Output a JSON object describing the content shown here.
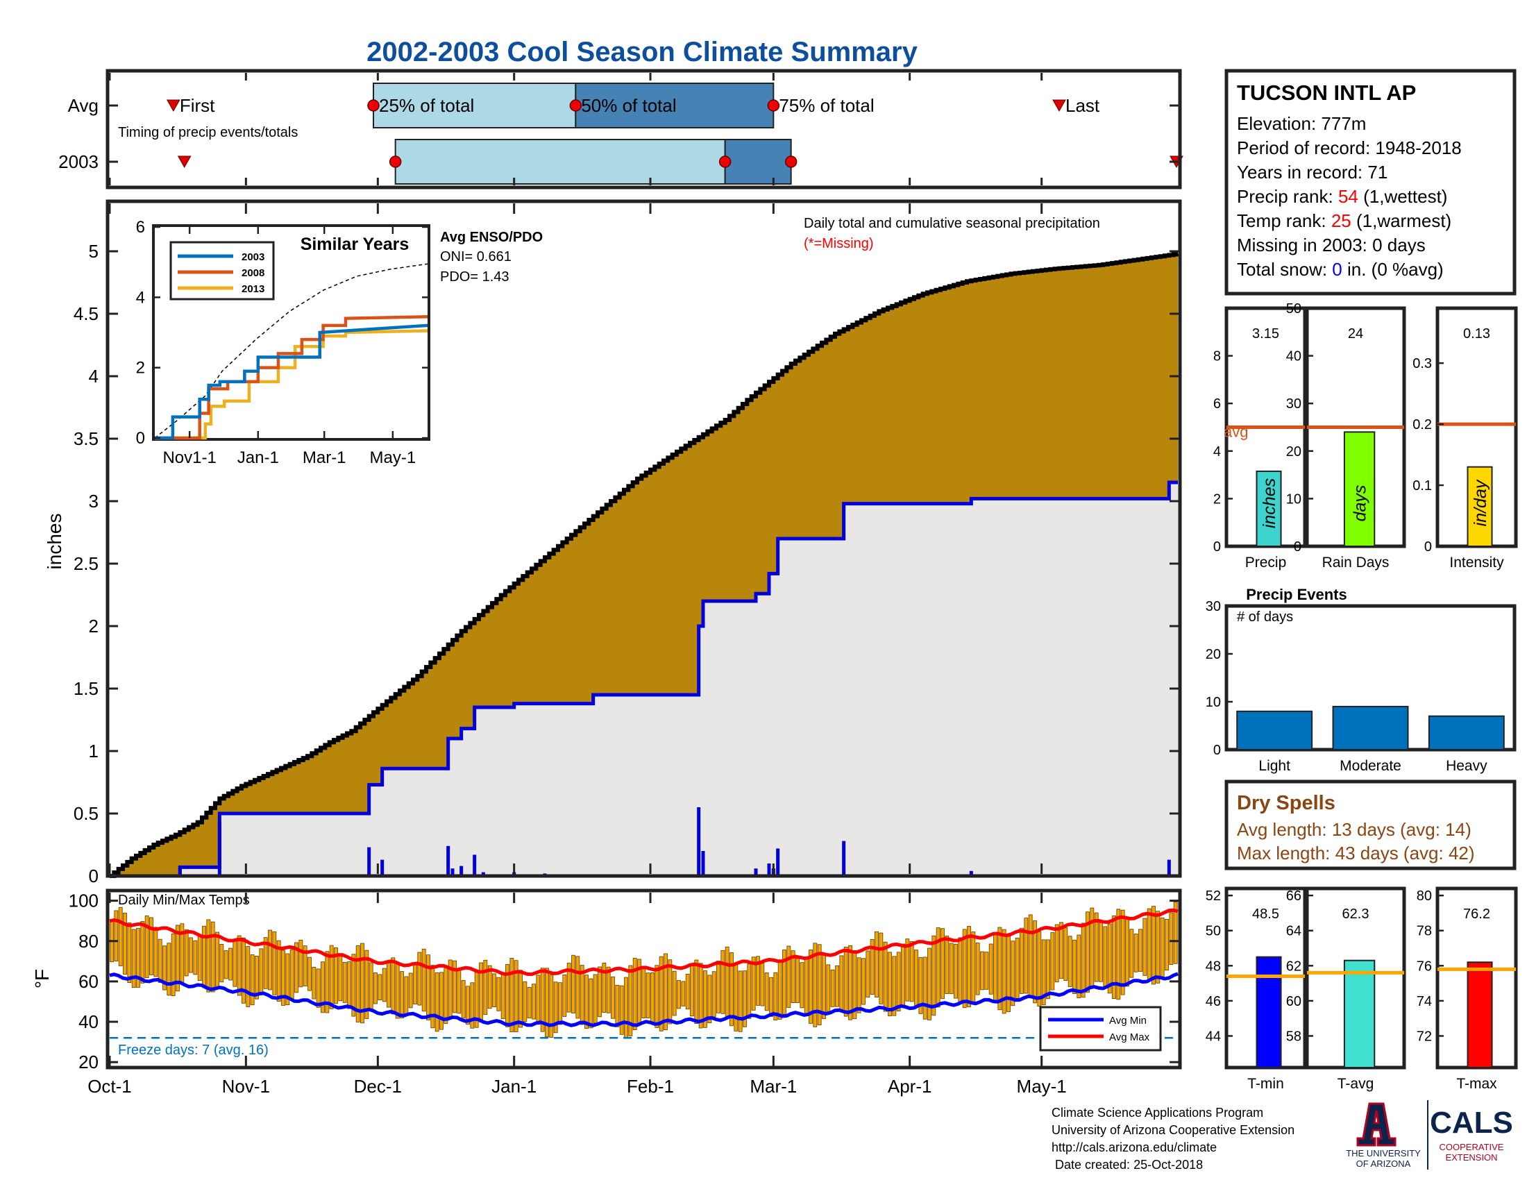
{
  "page": {
    "title": "2002-2003 Cool Season Climate Summary",
    "footer_lines": [
      "Climate Science Applications Program",
      "University of Arizona Cooperative Extension",
      "http://cals.arizona.edu/climate",
      " Date created: 25-Oct-2018"
    ],
    "logo_ua": {
      "line1": "THE UNIVERSITY",
      "line2": "OF ARIZONA"
    },
    "logo_cals": {
      "text": "CALS",
      "line1": "COOPERATIVE",
      "line2": "EXTENSION"
    }
  },
  "colors": {
    "title": "#0d4f9c",
    "cum_fill": "#b8860b",
    "cum_line": "#000000",
    "gray_fill": "#e8e7e6",
    "year_line": "#0000dd",
    "avg_bar_light": "#add8e6",
    "avg_bar_dark": "#4682b4",
    "s2003": "#0072bd",
    "s2008": "#d95319",
    "s2013": "#edb120",
    "temp_bar": "#f5a300",
    "avg_min": "#0000ff",
    "avg_max": "#ff0000",
    "freeze": "#0072bd",
    "rank": "#ff0000",
    "snow": "#0000ff",
    "dry": "#8b4513",
    "precip_bar": "#3cd4cc",
    "rain_bar": "#80ff00",
    "intensity_bar": "#ffd700",
    "events_bar": "#0072bd",
    "tmin_bar": "#0000ff",
    "tavg_bar": "#40e0d0",
    "tmax_bar": "#ff0000",
    "avg_line_bars": "#d95319",
    "avg_line_temps": "#ffa500"
  },
  "station": {
    "name": "TUCSON INTL AP",
    "elevation": "Elevation: 777m",
    "period": "Period of record: 1948-2018",
    "years": "Years in record: 71",
    "precip_rank_label": "Precip rank: ",
    "precip_rank_value": "54",
    "precip_rank_note": " (1,wettest)",
    "temp_rank_label": "Temp rank: ",
    "temp_rank_value": "25",
    "temp_rank_note": " (1,warmest)",
    "missing": "Missing in 2003: 0 days",
    "snow_label": "Total snow: ",
    "snow_value": "0",
    "snow_note": " in. (0 %avg)"
  },
  "timing": {
    "rows": [
      "Avg",
      "2003"
    ],
    "caption": "Timing of precip events/totals",
    "labels": {
      "first": "First",
      "p25": "25% of total",
      "p50": "50% of total",
      "p75": "75% of total",
      "last": "Last"
    },
    "avg_days": {
      "first": 14.5,
      "p25": 60,
      "p50": 106,
      "p75": 151,
      "last": 216
    },
    "y2003_days": {
      "first": 17,
      "p25": 65,
      "p50": 140,
      "p75": 155,
      "last": 243
    }
  },
  "dry_spells": {
    "title": "Dry Spells",
    "avg_length": "Avg length: 13 days (avg: 14)",
    "max_length": "Max length: 43 days (avg: 42)"
  },
  "chart_data": [
    {
      "id": "cumulative-precip",
      "type": "area",
      "annotation": "Daily total and cumulative seasonal precipitation",
      "missing_note": "(*=Missing)",
      "ylabel": "inches",
      "ylim": [
        0,
        5.4
      ],
      "yticks": [
        "0",
        "0.5",
        "1",
        "1.5",
        "2",
        "2.5",
        "3",
        "3.5",
        "4",
        "4.5",
        "5"
      ],
      "xlim": [
        0,
        243
      ],
      "xticks": [
        {
          "day": 0,
          "label": "Oct-1"
        },
        {
          "day": 31,
          "label": "Nov-1"
        },
        {
          "day": 61,
          "label": "Dec-1"
        },
        {
          "day": 92,
          "label": "Jan-1"
        },
        {
          "day": 123,
          "label": "Feb-1"
        },
        {
          "day": 151,
          "label": "Mar-1"
        },
        {
          "day": 182,
          "label": "Apr-1"
        },
        {
          "day": 212,
          "label": "May-1"
        }
      ],
      "avg_cumulative": {
        "days": [
          0,
          5,
          10,
          15,
          20,
          25,
          30,
          35,
          40,
          45,
          50,
          55,
          60,
          70,
          80,
          90,
          100,
          110,
          120,
          130,
          140,
          145,
          155,
          165,
          175,
          185,
          195,
          205,
          215,
          225,
          235,
          243
        ],
        "inches": [
          0,
          0.14,
          0.25,
          0.33,
          0.43,
          0.62,
          0.72,
          0.8,
          0.88,
          0.96,
          1.07,
          1.16,
          1.31,
          1.6,
          1.96,
          2.28,
          2.58,
          2.88,
          3.18,
          3.42,
          3.65,
          3.81,
          4.1,
          4.34,
          4.52,
          4.66,
          4.76,
          4.82,
          4.86,
          4.89,
          4.94,
          4.98
        ]
      },
      "cumulative_2003": {
        "days": [
          0,
          16,
          16,
          25,
          25,
          59,
          59,
          62,
          62,
          77,
          77,
          80,
          80,
          83,
          83,
          92,
          92,
          110,
          110,
          134,
          134,
          135,
          135,
          147,
          147,
          150,
          150,
          152,
          152,
          167,
          167,
          196,
          196,
          241,
          241,
          243
        ],
        "inches": [
          0,
          0,
          0.07,
          0.07,
          0.5,
          0.5,
          0.73,
          0.73,
          0.86,
          0.86,
          1.1,
          1.1,
          1.18,
          1.18,
          1.35,
          1.35,
          1.38,
          1.38,
          1.45,
          1.45,
          2.0,
          2.0,
          2.2,
          2.2,
          2.26,
          2.26,
          2.42,
          2.42,
          2.7,
          2.7,
          2.98,
          2.98,
          3.02,
          3.02,
          3.15,
          3.15
        ]
      },
      "daily_2003": {
        "days": [
          16,
          25,
          59,
          62,
          77,
          78,
          80,
          83,
          85,
          92,
          99,
          134,
          135,
          147,
          150,
          151,
          152,
          167,
          196,
          241
        ],
        "inches": [
          0.07,
          0.43,
          0.23,
          0.13,
          0.24,
          0.06,
          0.08,
          0.17,
          0.03,
          0.03,
          0.02,
          0.55,
          0.2,
          0.06,
          0.1,
          0.06,
          0.22,
          0.28,
          0.04,
          0.13
        ]
      }
    },
    {
      "id": "similar-years",
      "type": "line",
      "title": "Similar Years",
      "ylim": [
        0,
        6
      ],
      "yticks": [
        "0",
        "2",
        "4",
        "6"
      ],
      "xlim": [
        0,
        243
      ],
      "xticks": [
        {
          "day": 31,
          "label": "Nov1-1"
        },
        {
          "day": 92,
          "label": "Jan-1"
        },
        {
          "day": 151,
          "label": "Mar-1"
        },
        {
          "day": 212,
          "label": "May-1"
        }
      ],
      "enso": {
        "title": "Avg ENSO/PDO",
        "oni": "ONI= 0.661",
        "pdo": "PDO= 1.43"
      },
      "avg_line": {
        "days": [
          0,
          20,
          45,
          60,
          90,
          120,
          150,
          180,
          210,
          243
        ],
        "inches": [
          0,
          0.5,
          1.2,
          1.9,
          2.8,
          3.6,
          4.2,
          4.6,
          4.8,
          4.95
        ]
      },
      "series": [
        {
          "name": "2003",
          "days": [
            0,
            16,
            16,
            40,
            40,
            48,
            48,
            58,
            58,
            80,
            80,
            92,
            92,
            147,
            147,
            243
          ],
          "inches": [
            0,
            0,
            0.6,
            0.6,
            1.1,
            1.1,
            1.5,
            1.5,
            1.6,
            1.6,
            1.9,
            1.9,
            2.3,
            2.3,
            3.0,
            3.2
          ]
        },
        {
          "name": "2008",
          "days": [
            0,
            40,
            40,
            48,
            48,
            65,
            65,
            92,
            92,
            110,
            110,
            131,
            131,
            150,
            150,
            170,
            170,
            243
          ],
          "inches": [
            0,
            0,
            0.7,
            0.7,
            1.4,
            1.4,
            1.6,
            1.6,
            2.0,
            2.0,
            2.4,
            2.4,
            2.8,
            2.8,
            3.2,
            3.2,
            3.4,
            3.45
          ]
        },
        {
          "name": "2013",
          "days": [
            0,
            45,
            45,
            50,
            50,
            62,
            62,
            84,
            84,
            110,
            110,
            125,
            125,
            150,
            150,
            170,
            170,
            243
          ],
          "inches": [
            0,
            0,
            0.4,
            0.4,
            0.9,
            0.9,
            1.05,
            1.05,
            1.6,
            1.6,
            2.0,
            2.0,
            2.6,
            2.6,
            2.9,
            2.9,
            3.0,
            3.05
          ]
        }
      ]
    },
    {
      "id": "daily-temps",
      "type": "bar",
      "title": "Daily Min/Max Temps",
      "ylabel": "°F",
      "ylim": [
        18,
        104
      ],
      "yticks": [
        "20",
        "40",
        "60",
        "80",
        "100"
      ],
      "xlim": [
        0,
        243
      ],
      "freeze_line": 32,
      "freeze_text": "Freeze days: 7 (avg. 16)",
      "legend": [
        "Avg Min",
        "Avg Max"
      ],
      "avg_min": {
        "days": [
          0,
          30,
          60,
          92,
          120,
          150,
          180,
          210,
          243
        ],
        "temps": [
          63,
          55,
          45,
          39,
          39,
          43,
          47,
          52,
          63
        ]
      },
      "avg_max": {
        "days": [
          0,
          30,
          60,
          92,
          120,
          150,
          180,
          210,
          243
        ],
        "temps": [
          90,
          80,
          70,
          64,
          66,
          70,
          78,
          85,
          95
        ]
      }
    },
    {
      "id": "precip-total",
      "type": "bar",
      "categories": [
        "Precip"
      ],
      "values": [
        3.15
      ],
      "value_label": "3.15",
      "bar_label": "inches",
      "avg": 5.0,
      "avg_label": "avg",
      "ylim": [
        0,
        10
      ],
      "yticks": [
        "0",
        "2",
        "4",
        "6",
        "8"
      ]
    },
    {
      "id": "rain-days",
      "type": "bar",
      "categories": [
        "Rain Days"
      ],
      "values": [
        24
      ],
      "value_label": "24",
      "bar_label": "days",
      "avg": 25,
      "ylim": [
        0,
        50
      ],
      "yticks": [
        "0",
        "10",
        "20",
        "30",
        "40",
        "50"
      ]
    },
    {
      "id": "intensity",
      "type": "bar",
      "categories": [
        "Intensity"
      ],
      "values": [
        0.13
      ],
      "value_label": "0.13",
      "bar_label": "in/day",
      "avg": 0.2,
      "ylim": [
        0,
        0.39
      ],
      "yticks": [
        "0",
        "0.1",
        "0.2",
        "0.3"
      ]
    },
    {
      "id": "precip-events",
      "type": "bar",
      "title": "Precip Events",
      "ylabel": "# of days",
      "categories": [
        "Light",
        "Moderate",
        "Heavy"
      ],
      "values": [
        8,
        9,
        7
      ],
      "ylim": [
        0,
        30
      ],
      "yticks": [
        "0",
        "10",
        "20",
        "30"
      ]
    },
    {
      "id": "t-min",
      "type": "bar",
      "categories": [
        "T-min"
      ],
      "values": [
        48.5
      ],
      "value_label": "48.5",
      "avg": 47.4,
      "ylim": [
        42.2,
        52.4
      ],
      "yticks": [
        "44",
        "46",
        "48",
        "50",
        "52"
      ]
    },
    {
      "id": "t-avg",
      "type": "bar",
      "categories": [
        "T-avg"
      ],
      "values": [
        62.3
      ],
      "value_label": "62.3",
      "avg": 61.6,
      "ylim": [
        56.2,
        66.4
      ],
      "yticks": [
        "58",
        "60",
        "62",
        "64",
        "66"
      ]
    },
    {
      "id": "t-max",
      "type": "bar",
      "categories": [
        "T-max"
      ],
      "values": [
        76.2
      ],
      "value_label": "76.2",
      "avg": 75.8,
      "ylim": [
        70.2,
        80.4
      ],
      "yticks": [
        "72",
        "74",
        "76",
        "78",
        "80"
      ]
    }
  ]
}
